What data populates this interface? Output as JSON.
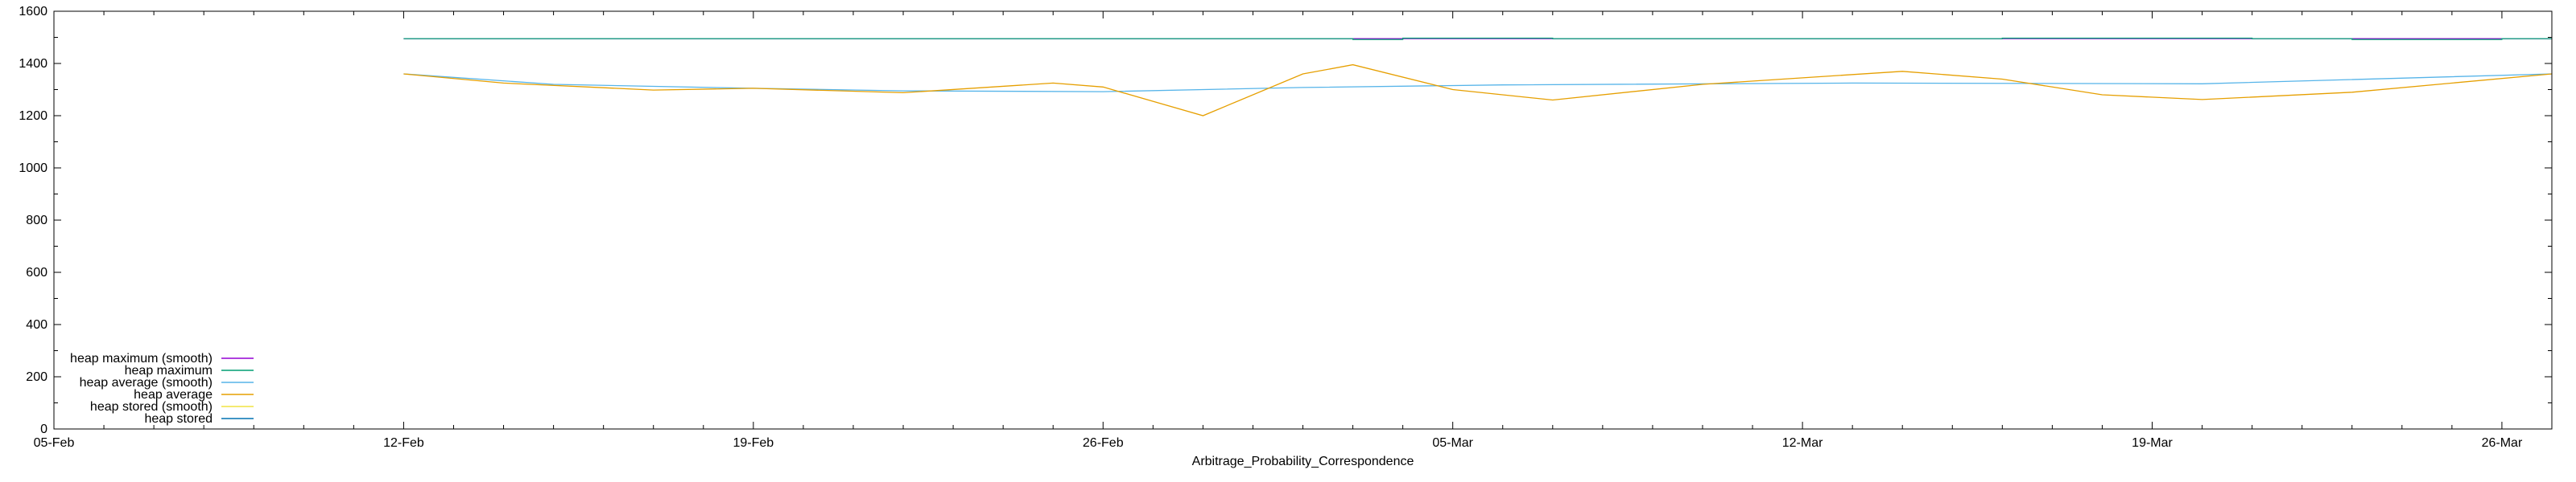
{
  "chart_data": {
    "type": "line",
    "title": "",
    "xlabel": "Arbitrage_Probability_Correspondence",
    "ylabel": "",
    "grid": false,
    "legend_position": "bottom-left",
    "xlim": [
      "2000-02-05",
      "2000-03-26"
    ],
    "ylim": [
      0,
      1600
    ],
    "x_ticks": [
      "05-Feb",
      "12-Feb",
      "19-Feb",
      "26-Feb",
      "05-Mar",
      "12-Mar",
      "19-Mar",
      "26-Mar"
    ],
    "y_ticks": [
      "0",
      "200",
      "400",
      "600",
      "800",
      "1000",
      "1200",
      "1400",
      "1600"
    ],
    "series": [
      {
        "name": "heap maximum (smooth)",
        "color": "#9400d3",
        "points": [
          [
            "2000-02-12",
            1495
          ],
          [
            "2000-03-26",
            1495
          ]
        ]
      },
      {
        "name": "heap maximum",
        "color": "#009e73",
        "points": [
          [
            "2000-02-12",
            1495
          ],
          [
            "2000-03-02",
            1495
          ],
          [
            "2000-03-02",
            1492
          ],
          [
            "2000-03-03",
            1492
          ],
          [
            "2000-03-03",
            1497
          ],
          [
            "2000-03-06",
            1497
          ],
          [
            "2000-03-06",
            1495
          ],
          [
            "2000-03-15",
            1495
          ],
          [
            "2000-03-15",
            1497
          ],
          [
            "2000-03-20",
            1497
          ],
          [
            "2000-03-20",
            1495
          ],
          [
            "2000-03-22",
            1495
          ],
          [
            "2000-03-22",
            1492
          ],
          [
            "2000-03-25",
            1492
          ],
          [
            "2000-03-25",
            1495
          ],
          [
            "2000-03-26",
            1495
          ]
        ]
      },
      {
        "name": "heap average (smooth)",
        "color": "#56b4e9",
        "points": [
          [
            "2000-02-12",
            1360
          ],
          [
            "2000-02-15",
            1320
          ],
          [
            "2000-02-19",
            1305
          ],
          [
            "2000-02-22",
            1295
          ],
          [
            "2000-02-26",
            1292
          ],
          [
            "2000-03-01",
            1308
          ],
          [
            "2000-03-05",
            1318
          ],
          [
            "2000-03-12",
            1325
          ],
          [
            "2000-03-19",
            1322
          ],
          [
            "2000-03-26",
            1360
          ]
        ]
      },
      {
        "name": "heap average",
        "color": "#e69f00",
        "points": [
          [
            "2000-02-12",
            1360
          ],
          [
            "2000-02-14",
            1325
          ],
          [
            "2000-02-17",
            1298
          ],
          [
            "2000-02-19",
            1305
          ],
          [
            "2000-02-22",
            1288
          ],
          [
            "2000-02-25",
            1325
          ],
          [
            "2000-02-26",
            1310
          ],
          [
            "2000-02-28",
            1200
          ],
          [
            "2000-03-01",
            1360
          ],
          [
            "2000-03-02",
            1395
          ],
          [
            "2000-03-04",
            1300
          ],
          [
            "2000-03-06",
            1260
          ],
          [
            "2000-03-09",
            1320
          ],
          [
            "2000-03-13",
            1370
          ],
          [
            "2000-03-15",
            1340
          ],
          [
            "2000-03-17",
            1280
          ],
          [
            "2000-03-19",
            1262
          ],
          [
            "2000-03-22",
            1290
          ],
          [
            "2000-03-26",
            1360
          ]
        ]
      },
      {
        "name": "heap stored (smooth)",
        "color": "#f0e442",
        "points": []
      },
      {
        "name": "heap stored",
        "color": "#0072b2",
        "points": []
      }
    ]
  }
}
